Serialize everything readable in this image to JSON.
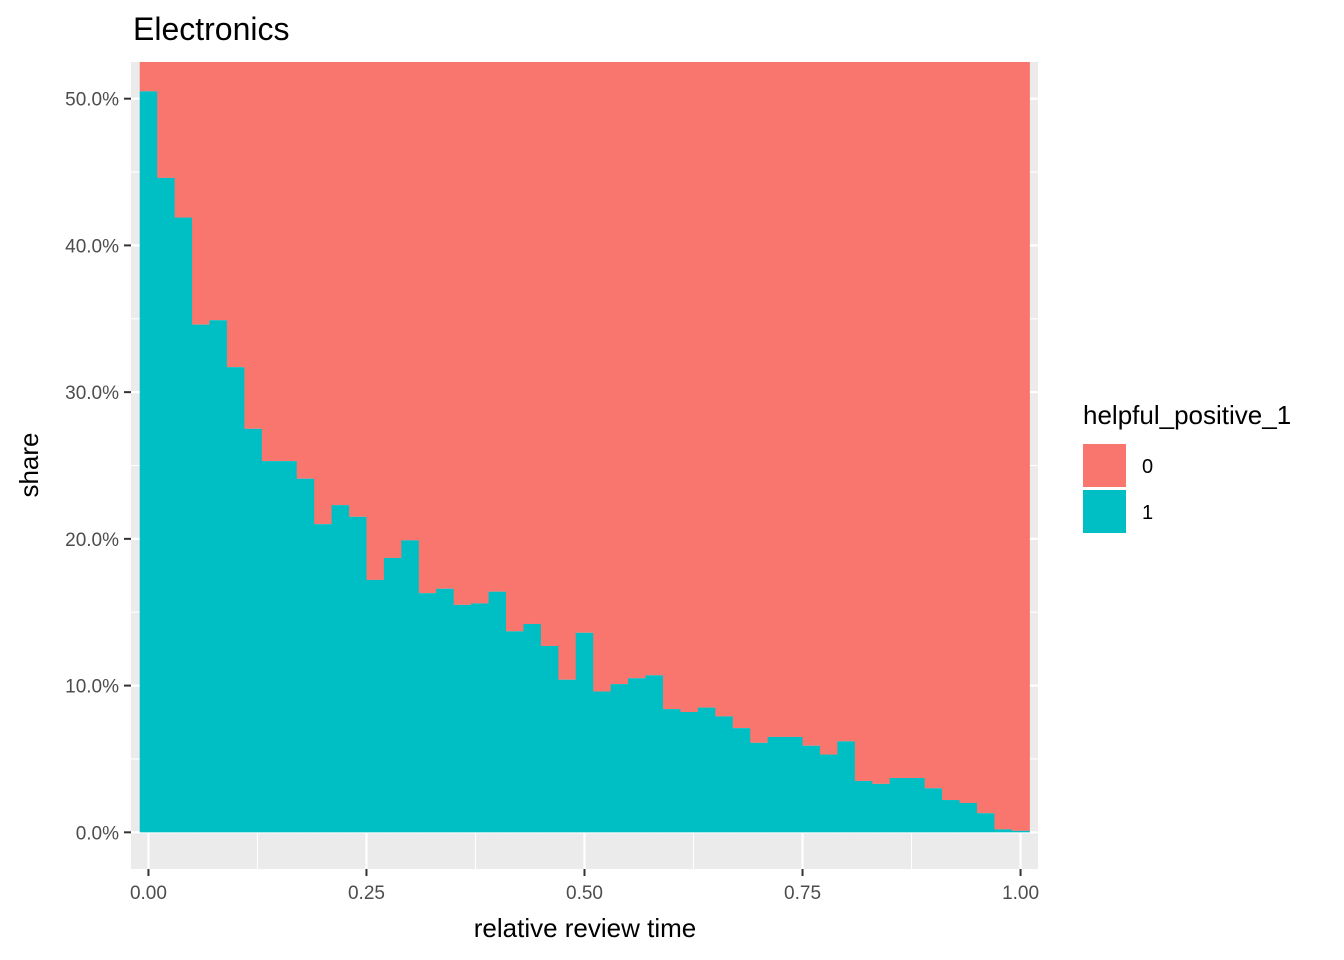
{
  "chart_data": {
    "type": "bar",
    "stacked": true,
    "title": "Electronics",
    "xlabel": "relative review time",
    "ylabel": "share",
    "xlim": [
      -0.02,
      1.02
    ],
    "ylim": [
      -0.025,
      0.525
    ],
    "grid": true,
    "background": "#ebebeb",
    "x_ticks": [
      {
        "value": 0.0,
        "label": "0.00"
      },
      {
        "value": 0.25,
        "label": "0.25"
      },
      {
        "value": 0.5,
        "label": "0.50"
      },
      {
        "value": 0.75,
        "label": "0.75"
      },
      {
        "value": 1.0,
        "label": "1.00"
      }
    ],
    "y_ticks": [
      {
        "value": 0.0,
        "label": "0.0%"
      },
      {
        "value": 0.1,
        "label": "10.0%"
      },
      {
        "value": 0.2,
        "label": "20.0%"
      },
      {
        "value": 0.3,
        "label": "30.0%"
      },
      {
        "value": 0.4,
        "label": "40.0%"
      },
      {
        "value": 0.5,
        "label": "50.0%"
      }
    ],
    "bin_width": 0.02,
    "x": [
      0.0,
      0.02,
      0.04,
      0.06,
      0.08,
      0.1,
      0.12,
      0.14,
      0.16,
      0.18,
      0.2,
      0.22,
      0.24,
      0.26,
      0.28,
      0.3,
      0.32,
      0.34,
      0.36,
      0.38,
      0.4,
      0.42,
      0.44,
      0.46,
      0.48,
      0.5,
      0.52,
      0.54,
      0.56,
      0.58,
      0.6,
      0.62,
      0.64,
      0.66,
      0.68,
      0.7,
      0.72,
      0.74,
      0.76,
      0.78,
      0.8,
      0.82,
      0.84,
      0.86,
      0.88,
      0.9,
      0.92,
      0.94,
      0.96,
      0.98,
      1.0
    ],
    "series": [
      {
        "name": "0",
        "color": "#f8766d",
        "values": [
          0.0,
          0.0,
          0.0,
          0.0,
          0.0,
          0.0,
          0.0,
          0.0,
          0.0,
          0.0,
          0.0,
          0.0,
          0.0,
          0.0,
          0.0,
          0.0,
          0.0,
          0.0,
          0.0,
          0.0,
          0.0,
          0.0,
          0.0,
          0.0,
          0.0,
          0.0,
          0.0,
          0.0,
          0.0,
          0.0,
          0.0,
          0.0,
          0.0,
          0.0,
          0.0,
          0.0,
          0.0,
          0.0,
          0.0,
          0.0,
          0.0,
          0.0,
          0.0,
          0.0,
          0.0,
          0.0,
          0.0,
          0.0,
          0.0,
          0.0,
          0.0
        ],
        "note_fill": "fills from series 1 top to ylim top (share of helpful_positive_1 = 0)"
      },
      {
        "name": "1",
        "color": "#00bfc4",
        "values": [
          0.505,
          0.446,
          0.419,
          0.346,
          0.349,
          0.317,
          0.275,
          0.253,
          0.253,
          0.241,
          0.21,
          0.223,
          0.215,
          0.172,
          0.187,
          0.199,
          0.163,
          0.166,
          0.155,
          0.156,
          0.164,
          0.137,
          0.142,
          0.127,
          0.104,
          0.136,
          0.096,
          0.101,
          0.105,
          0.107,
          0.084,
          0.082,
          0.085,
          0.079,
          0.071,
          0.061,
          0.065,
          0.065,
          0.059,
          0.053,
          0.062,
          0.035,
          0.033,
          0.037,
          0.037,
          0.03,
          0.022,
          0.02,
          0.013,
          0.002,
          0.001
        ]
      }
    ],
    "legend": {
      "title": "helpful_positive_1",
      "position": "right",
      "items": [
        {
          "label": "0",
          "color": "#f8766d"
        },
        {
          "label": "1",
          "color": "#00bfc4"
        }
      ]
    }
  }
}
